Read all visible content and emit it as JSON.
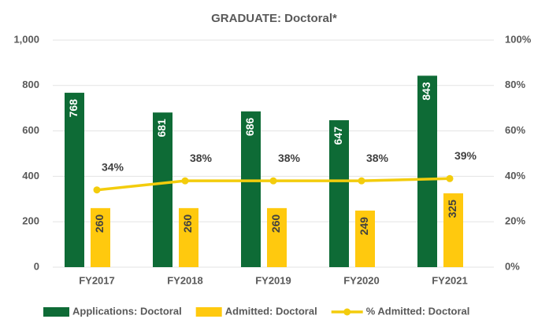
{
  "chart_data": {
    "type": "bar",
    "title": "GRADUATE:  Doctoral*",
    "categories": [
      "FY2017",
      "FY2018",
      "FY2019",
      "FY2020",
      "FY2021"
    ],
    "series": [
      {
        "name": "Applications: Doctoral",
        "color": "#0e6b36",
        "values": [
          768,
          681,
          686,
          647,
          843
        ]
      },
      {
        "name": "Admitted: Doctoral",
        "color": "#ffc90e",
        "values": [
          260,
          260,
          260,
          249,
          325
        ]
      },
      {
        "name": "% Admitted: Doctoral",
        "color": "#f3cc0c",
        "type": "line",
        "axis": "y2",
        "values": [
          34,
          38,
          38,
          38,
          39
        ],
        "value_labels": [
          "34%",
          "38%",
          "38%",
          "38%",
          "39%"
        ]
      }
    ],
    "ylim": [
      0,
      1000
    ],
    "yticks": [
      0,
      200,
      400,
      600,
      800,
      {
        "value": 1000,
        "label": "1,000"
      }
    ],
    "y2lim": [
      0,
      100
    ],
    "y2ticks": [
      {
        "value": 0,
        "label": "0%"
      },
      {
        "value": 20,
        "label": "20%"
      },
      {
        "value": 40,
        "label": "40%"
      },
      {
        "value": 60,
        "label": "60%"
      },
      {
        "value": 80,
        "label": "80%"
      },
      {
        "value": 100,
        "label": "100%"
      }
    ],
    "grid": true,
    "legend": "bottom"
  }
}
